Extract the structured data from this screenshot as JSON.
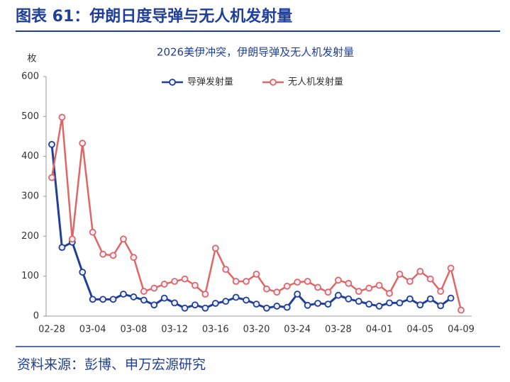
{
  "header": {
    "title": "图表 61：伊朗日度导弹与无人机发射量"
  },
  "chart_data": {
    "type": "line",
    "title": "2026美伊冲突，伊朗导弹及无人机发射量",
    "y_label": "枚",
    "categories": [
      "02-28",
      null,
      null,
      null,
      "03-04",
      null,
      null,
      null,
      "03-08",
      null,
      null,
      null,
      "03-12",
      null,
      null,
      null,
      "03-16",
      null,
      null,
      null,
      "03-20",
      null,
      null,
      null,
      "03-24",
      null,
      null,
      null,
      "03-28",
      null,
      null,
      null,
      "04-01",
      null,
      null,
      null,
      "04-05",
      null,
      null,
      null,
      "04-09"
    ],
    "series": [
      {
        "name": "导弹发射量",
        "color": "#1f3f99",
        "values": [
          430,
          172,
          185,
          110,
          42,
          42,
          42,
          55,
          48,
          40,
          28,
          45,
          33,
          20,
          28,
          20,
          32,
          37,
          47,
          40,
          30,
          20,
          25,
          22,
          55,
          27,
          32,
          30,
          52,
          43,
          37,
          30,
          25,
          33,
          33,
          43,
          28,
          43,
          26,
          45,
          null
        ]
      },
      {
        "name": "无人机发射量",
        "color": "#e06666",
        "values": [
          347,
          498,
          193,
          433,
          210,
          155,
          152,
          193,
          147,
          62,
          70,
          80,
          87,
          93,
          77,
          55,
          170,
          117,
          87,
          87,
          105,
          68,
          60,
          75,
          85,
          87,
          72,
          60,
          90,
          82,
          62,
          70,
          77,
          57,
          105,
          87,
          112,
          93,
          62,
          120,
          15
        ]
      }
    ],
    "ylim": [
      0,
      600
    ],
    "yticks": [
      0,
      100,
      200,
      300,
      400,
      500,
      600
    ],
    "grid": false,
    "legend": "top"
  },
  "footer": {
    "source": "资料来源：彭博、申万宏源研究"
  }
}
